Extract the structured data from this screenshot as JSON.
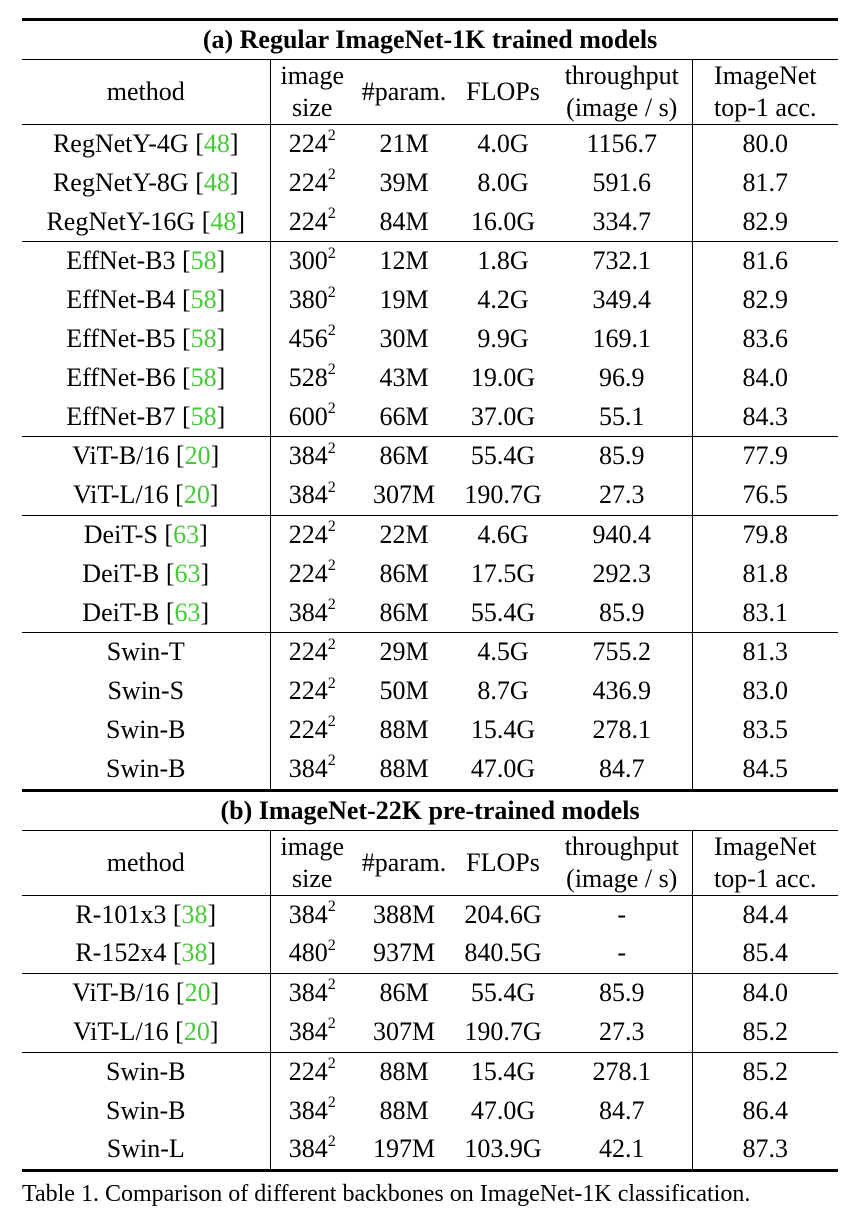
{
  "table": {
    "sections": [
      {
        "title": "(a) Regular ImageNet-1K trained models",
        "headers": {
          "method": "method",
          "size_line1": "image",
          "size_line2": "size",
          "params": "#param.",
          "flops": "FLOPs",
          "throughput_line1": "throughput",
          "throughput_line2": "(image / s)",
          "acc_line1": "ImageNet",
          "acc_line2": "top-1 acc."
        },
        "groups": [
          [
            {
              "method": "RegNetY-4G",
              "ref": "48",
              "size": "224",
              "params": "21M",
              "flops": "4.0G",
              "throughput": "1156.7",
              "acc": "80.0"
            },
            {
              "method": "RegNetY-8G",
              "ref": "48",
              "size": "224",
              "params": "39M",
              "flops": "8.0G",
              "throughput": "591.6",
              "acc": "81.7"
            },
            {
              "method": "RegNetY-16G",
              "ref": "48",
              "size": "224",
              "params": "84M",
              "flops": "16.0G",
              "throughput": "334.7",
              "acc": "82.9"
            }
          ],
          [
            {
              "method": "EffNet-B3",
              "ref": "58",
              "size": "300",
              "params": "12M",
              "flops": "1.8G",
              "throughput": "732.1",
              "acc": "81.6"
            },
            {
              "method": "EffNet-B4",
              "ref": "58",
              "size": "380",
              "params": "19M",
              "flops": "4.2G",
              "throughput": "349.4",
              "acc": "82.9"
            },
            {
              "method": "EffNet-B5",
              "ref": "58",
              "size": "456",
              "params": "30M",
              "flops": "9.9G",
              "throughput": "169.1",
              "acc": "83.6"
            },
            {
              "method": "EffNet-B6",
              "ref": "58",
              "size": "528",
              "params": "43M",
              "flops": "19.0G",
              "throughput": "96.9",
              "acc": "84.0"
            },
            {
              "method": "EffNet-B7",
              "ref": "58",
              "size": "600",
              "params": "66M",
              "flops": "37.0G",
              "throughput": "55.1",
              "acc": "84.3"
            }
          ],
          [
            {
              "method": "ViT-B/16",
              "ref": "20",
              "size": "384",
              "params": "86M",
              "flops": "55.4G",
              "throughput": "85.9",
              "acc": "77.9"
            },
            {
              "method": "ViT-L/16",
              "ref": "20",
              "size": "384",
              "params": "307M",
              "flops": "190.7G",
              "throughput": "27.3",
              "acc": "76.5"
            }
          ],
          [
            {
              "method": "DeiT-S",
              "ref": "63",
              "size": "224",
              "params": "22M",
              "flops": "4.6G",
              "throughput": "940.4",
              "acc": "79.8"
            },
            {
              "method": "DeiT-B",
              "ref": "63",
              "size": "224",
              "params": "86M",
              "flops": "17.5G",
              "throughput": "292.3",
              "acc": "81.8"
            },
            {
              "method": "DeiT-B",
              "ref": "63",
              "size": "384",
              "params": "86M",
              "flops": "55.4G",
              "throughput": "85.9",
              "acc": "83.1"
            }
          ],
          [
            {
              "method": "Swin-T",
              "ref": "",
              "size": "224",
              "params": "29M",
              "flops": "4.5G",
              "throughput": "755.2",
              "acc": "81.3"
            },
            {
              "method": "Swin-S",
              "ref": "",
              "size": "224",
              "params": "50M",
              "flops": "8.7G",
              "throughput": "436.9",
              "acc": "83.0"
            },
            {
              "method": "Swin-B",
              "ref": "",
              "size": "224",
              "params": "88M",
              "flops": "15.4G",
              "throughput": "278.1",
              "acc": "83.5"
            },
            {
              "method": "Swin-B",
              "ref": "",
              "size": "384",
              "params": "88M",
              "flops": "47.0G",
              "throughput": "84.7",
              "acc": "84.5"
            }
          ]
        ]
      },
      {
        "title": "(b) ImageNet-22K pre-trained models",
        "headers": {
          "method": "method",
          "size_line1": "image",
          "size_line2": "size",
          "params": "#param.",
          "flops": "FLOPs",
          "throughput_line1": "throughput",
          "throughput_line2": "(image / s)",
          "acc_line1": "ImageNet",
          "acc_line2": "top-1 acc."
        },
        "groups": [
          [
            {
              "method": "R-101x3",
              "ref": "38",
              "size": "384",
              "params": "388M",
              "flops": "204.6G",
              "throughput": "-",
              "acc": "84.4"
            },
            {
              "method": "R-152x4",
              "ref": "38",
              "size": "480",
              "params": "937M",
              "flops": "840.5G",
              "throughput": "-",
              "acc": "85.4"
            }
          ],
          [
            {
              "method": "ViT-B/16",
              "ref": "20",
              "size": "384",
              "params": "86M",
              "flops": "55.4G",
              "throughput": "85.9",
              "acc": "84.0"
            },
            {
              "method": "ViT-L/16",
              "ref": "20",
              "size": "384",
              "params": "307M",
              "flops": "190.7G",
              "throughput": "27.3",
              "acc": "85.2"
            }
          ],
          [
            {
              "method": "Swin-B",
              "ref": "",
              "size": "224",
              "params": "88M",
              "flops": "15.4G",
              "throughput": "278.1",
              "acc": "85.2"
            },
            {
              "method": "Swin-B",
              "ref": "",
              "size": "384",
              "params": "88M",
              "flops": "47.0G",
              "throughput": "84.7",
              "acc": "86.4"
            },
            {
              "method": "Swin-L",
              "ref": "",
              "size": "384",
              "params": "197M",
              "flops": "103.9G",
              "throughput": "42.1",
              "acc": "87.3"
            }
          ]
        ]
      }
    ],
    "size_exponent": "2"
  },
  "caption": "Table 1. Comparison of different backbones on ImageNet-1K classification."
}
